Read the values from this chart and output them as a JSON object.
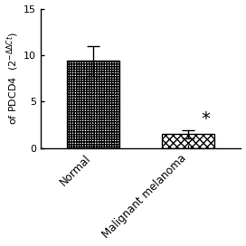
{
  "categories": [
    "Normal",
    "Malignant melanoma"
  ],
  "values": [
    9.4,
    1.5
  ],
  "errors": [
    1.6,
    0.4
  ],
  "ylim": [
    0,
    15
  ],
  "yticks": [
    0,
    5,
    10,
    15
  ],
  "ylabel": "of PDCD4  (2$^{-\\Delta\\Delta Ct}$)",
  "bar_width": 0.55,
  "asterisk_text": "*",
  "asterisk_fontsize": 14,
  "figsize": [
    2.72,
    2.72
  ],
  "dpi": 100,
  "tick_labelsize": 8,
  "ylabel_fontsize": 8,
  "xlabel_fontsize": 8.5
}
